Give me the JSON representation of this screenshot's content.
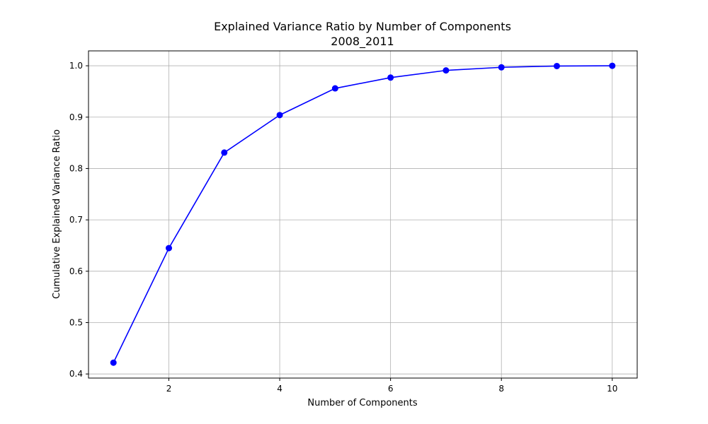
{
  "chart_data": {
    "type": "line",
    "title": "Explained Variance Ratio by Number of Components",
    "subtitle": "2008_2011",
    "xlabel": "Number of Components",
    "ylabel": "Cumulative Explained Variance Ratio",
    "x": [
      1,
      2,
      3,
      4,
      5,
      6,
      7,
      8,
      9,
      10
    ],
    "series": [
      {
        "values": [
          0.422,
          0.645,
          0.831,
          0.904,
          0.956,
          0.977,
          0.991,
          0.997,
          0.9995,
          1.0
        ]
      }
    ],
    "xlim": [
      0.55,
      10.45
    ],
    "ylim": [
      0.392,
      1.029
    ],
    "xticks": [
      2,
      4,
      6,
      8,
      10
    ],
    "xtick_labels": [
      "2",
      "4",
      "6",
      "8",
      "10"
    ],
    "yticks": [
      0.4,
      0.5,
      0.6,
      0.7,
      0.8,
      0.9,
      1.0
    ],
    "ytick_labels": [
      "0.4",
      "0.5",
      "0.6",
      "0.7",
      "0.8",
      "0.9",
      "1.0"
    ],
    "grid": true,
    "marker": "circle",
    "color": "#0000ff"
  }
}
